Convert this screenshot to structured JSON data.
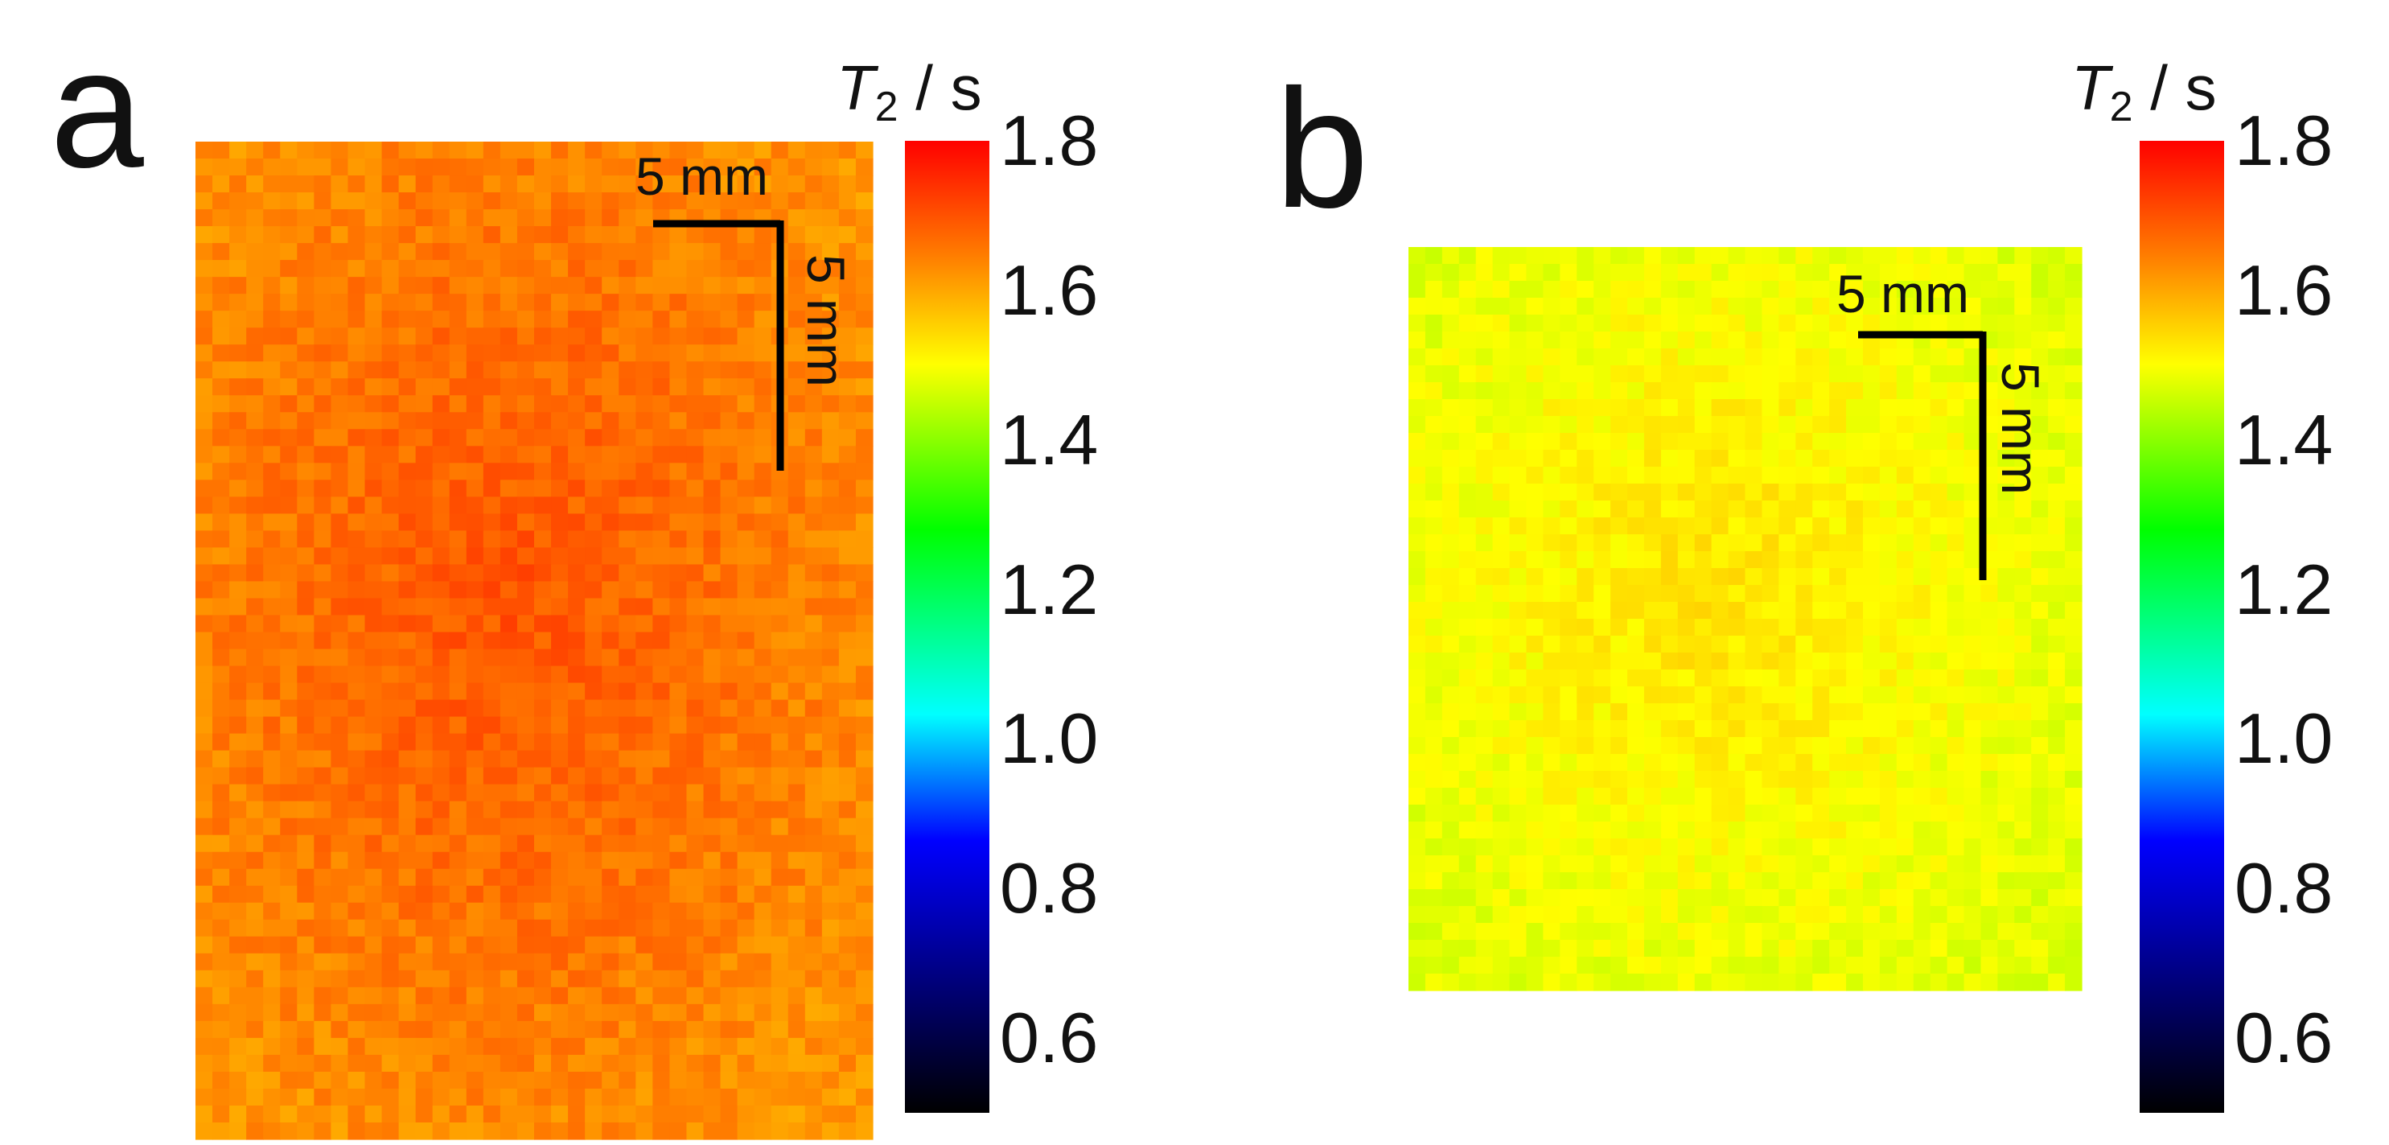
{
  "chart_data": [
    {
      "type": "heatmap",
      "panel": "a",
      "colorbar": {
        "title_symbol": "T",
        "title_subscript": "2",
        "title_unit": " / s",
        "ticks": [
          "1.8",
          "1.6",
          "1.4",
          "1.2",
          "1.0",
          "0.8",
          "0.6"
        ],
        "range": [
          0.5,
          1.8
        ]
      },
      "scale_bar": {
        "horizontal_label": "5 mm",
        "vertical_label": "5 mm"
      },
      "grid": {
        "cols": 40,
        "rows": 59
      },
      "value_range": [
        1.55,
        1.72
      ],
      "typical_value": 1.66
    },
    {
      "type": "heatmap",
      "panel": "b",
      "colorbar": {
        "title_symbol": "T",
        "title_subscript": "2",
        "title_unit": " / s",
        "ticks": [
          "1.8",
          "1.6",
          "1.4",
          "1.2",
          "1.0",
          "0.8",
          "0.6"
        ],
        "range": [
          0.5,
          1.8
        ]
      },
      "scale_bar": {
        "horizontal_label": "5 mm",
        "vertical_label": "5 mm"
      },
      "grid": {
        "cols": 40,
        "rows": 44
      },
      "value_range": [
        1.42,
        1.55
      ],
      "typical_value": 1.49
    }
  ],
  "panels": [
    {
      "letter": "a"
    },
    {
      "letter": "b"
    }
  ]
}
